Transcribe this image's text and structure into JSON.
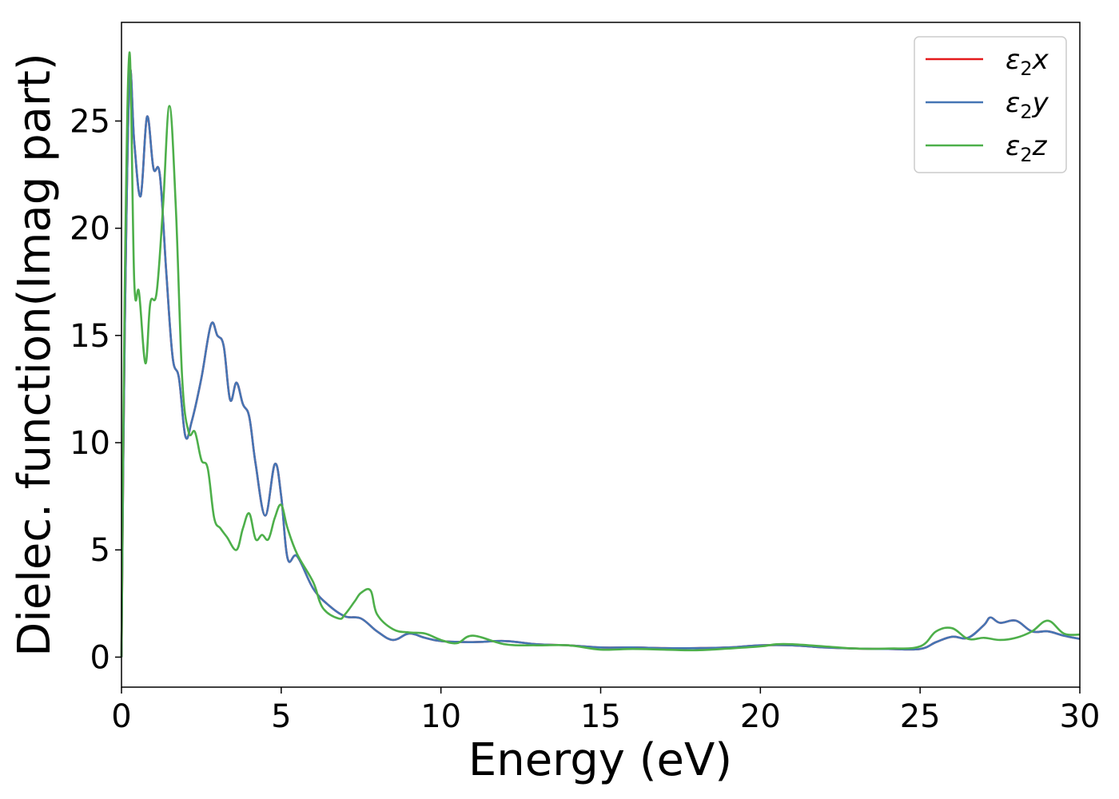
{
  "chart_data": {
    "type": "line",
    "xlabel": "Energy (eV)",
    "ylabel": "Dielec. function(Imag part)",
    "xlim": [
      0,
      30
    ],
    "ylim": [
      -1.4,
      29.6
    ],
    "xticks": [
      0,
      5,
      10,
      15,
      20,
      25,
      30
    ],
    "yticks": [
      0,
      5,
      10,
      15,
      20,
      25
    ],
    "grid": false,
    "legend_position": "top-right",
    "series": [
      {
        "name": "ε2x",
        "label_main": "ε",
        "label_sub": "2",
        "label_tail": "x",
        "color": "#e41a1c",
        "x": [
          0,
          0.1,
          0.25,
          0.4,
          0.6,
          0.8,
          1.0,
          1.2,
          1.4,
          1.6,
          1.8,
          2.0,
          2.2,
          2.5,
          2.8,
          3.0,
          3.2,
          3.4,
          3.6,
          3.8,
          4.0,
          4.2,
          4.5,
          4.8,
          5.0,
          5.2,
          5.5,
          6.0,
          6.5,
          7.0,
          7.5,
          8.0,
          8.5,
          9.0,
          9.5,
          10,
          11,
          12,
          13,
          14,
          15,
          16,
          17,
          18,
          19,
          20,
          21,
          22,
          23,
          24,
          25,
          25.5,
          26,
          26.5,
          27,
          27.2,
          27.5,
          28,
          28.5,
          29,
          29.5,
          30
        ],
        "values": [
          0,
          15,
          27,
          24,
          21.5,
          25.2,
          22.8,
          22.5,
          18,
          14,
          13,
          10.3,
          11,
          13,
          15.5,
          15,
          14.5,
          12,
          12.8,
          11.8,
          11.2,
          9,
          6.6,
          9,
          7.5,
          4.6,
          4.7,
          3.2,
          2.4,
          1.9,
          1.8,
          1.2,
          0.8,
          1.1,
          0.9,
          0.75,
          0.7,
          0.75,
          0.6,
          0.55,
          0.45,
          0.45,
          0.42,
          0.42,
          0.45,
          0.55,
          0.55,
          0.45,
          0.4,
          0.38,
          0.38,
          0.7,
          0.95,
          0.9,
          1.5,
          1.85,
          1.6,
          1.7,
          1.2,
          1.2,
          1.0,
          0.85
        ]
      },
      {
        "name": "ε2y",
        "label_main": "ε",
        "label_sub": "2",
        "label_tail": "y",
        "color": "#4575b4",
        "x": [
          0,
          0.1,
          0.25,
          0.4,
          0.6,
          0.8,
          1.0,
          1.2,
          1.4,
          1.6,
          1.8,
          2.0,
          2.2,
          2.5,
          2.8,
          3.0,
          3.2,
          3.4,
          3.6,
          3.8,
          4.0,
          4.2,
          4.5,
          4.8,
          5.0,
          5.2,
          5.5,
          6.0,
          6.5,
          7.0,
          7.5,
          8.0,
          8.5,
          9.0,
          9.5,
          10,
          11,
          12,
          13,
          14,
          15,
          16,
          17,
          18,
          19,
          20,
          21,
          22,
          23,
          24,
          25,
          25.5,
          26,
          26.5,
          27,
          27.2,
          27.5,
          28,
          28.5,
          29,
          29.5,
          30
        ],
        "values": [
          0,
          15,
          27,
          24,
          21.5,
          25.2,
          22.8,
          22.5,
          18,
          14,
          13,
          10.3,
          11,
          13,
          15.5,
          15,
          14.5,
          12,
          12.8,
          11.8,
          11.2,
          9,
          6.6,
          9,
          7.5,
          4.6,
          4.7,
          3.2,
          2.4,
          1.9,
          1.8,
          1.2,
          0.8,
          1.1,
          0.9,
          0.75,
          0.7,
          0.75,
          0.6,
          0.55,
          0.45,
          0.45,
          0.42,
          0.42,
          0.45,
          0.55,
          0.55,
          0.45,
          0.4,
          0.38,
          0.38,
          0.7,
          0.95,
          0.9,
          1.5,
          1.85,
          1.6,
          1.7,
          1.2,
          1.2,
          1.0,
          0.85
        ]
      },
      {
        "name": "ε2z",
        "label_main": "ε",
        "label_sub": "2",
        "label_tail": "z",
        "color": "#4daf4a",
        "x": [
          0,
          0.1,
          0.25,
          0.4,
          0.55,
          0.75,
          0.9,
          1.1,
          1.3,
          1.5,
          1.7,
          1.9,
          2.1,
          2.3,
          2.5,
          2.7,
          2.9,
          3.1,
          3.3,
          3.6,
          3.8,
          4.0,
          4.2,
          4.4,
          4.6,
          4.8,
          5.0,
          5.2,
          5.5,
          6.0,
          6.3,
          6.8,
          7.0,
          7.3,
          7.5,
          7.8,
          8.0,
          8.5,
          9.0,
          9.5,
          10,
          10.5,
          11,
          12,
          13,
          14,
          15,
          16,
          17,
          18,
          19,
          20,
          20.5,
          21,
          22,
          23,
          24,
          25,
          25.5,
          26,
          26.5,
          27,
          27.5,
          28,
          28.5,
          29,
          29.5,
          30
        ],
        "values": [
          0,
          17,
          28.2,
          17.5,
          17,
          13.7,
          16.5,
          17,
          21,
          25.7,
          21,
          13,
          10.5,
          10.5,
          9.2,
          8.8,
          6.5,
          6,
          5.6,
          5,
          6,
          6.7,
          5.5,
          5.7,
          5.5,
          6.5,
          7.1,
          6,
          4.8,
          3.5,
          2.3,
          1.8,
          2,
          2.6,
          3,
          3.1,
          2.0,
          1.3,
          1.15,
          1.1,
          0.8,
          0.65,
          1.0,
          0.6,
          0.55,
          0.55,
          0.35,
          0.38,
          0.35,
          0.32,
          0.4,
          0.5,
          0.6,
          0.6,
          0.5,
          0.4,
          0.4,
          0.5,
          1.2,
          1.35,
          0.85,
          0.9,
          0.8,
          0.9,
          1.2,
          1.7,
          1.1,
          1.05
        ]
      }
    ]
  }
}
